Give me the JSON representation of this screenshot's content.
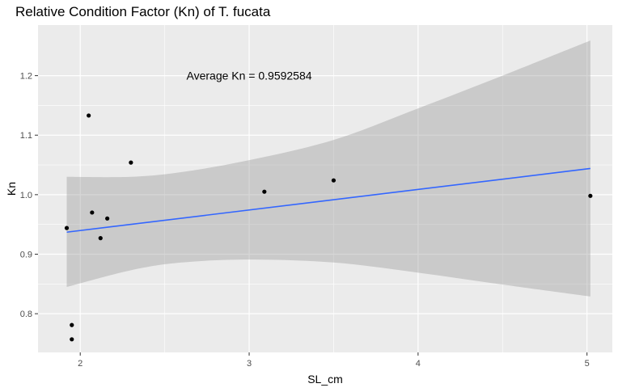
{
  "chart_data": {
    "type": "scatter",
    "title": "Relative Condition Factor (Kn) of T. fucata",
    "xlabel": "SL_cm",
    "ylabel": "Kn",
    "xlim": [
      1.75,
      5.15
    ],
    "ylim": [
      0.735,
      1.285
    ],
    "x_ticks": [
      2,
      3,
      4,
      5
    ],
    "x_tick_labels": [
      "2",
      "3",
      "4",
      "5"
    ],
    "y_ticks": [
      0.8,
      0.9,
      1.0,
      1.1,
      1.2
    ],
    "y_tick_labels": [
      "0.8",
      "0.9",
      "1.0",
      "1.1",
      "1.2"
    ],
    "grid": true,
    "background": "#ebebeb",
    "annotation": {
      "text": "Average Kn = 0.9592584",
      "x": 3.0,
      "y": 1.2
    },
    "points": [
      {
        "x": 1.92,
        "y": 0.944
      },
      {
        "x": 1.95,
        "y": 0.781
      },
      {
        "x": 1.95,
        "y": 0.757
      },
      {
        "x": 2.05,
        "y": 1.133
      },
      {
        "x": 2.07,
        "y": 0.97
      },
      {
        "x": 2.12,
        "y": 0.927
      },
      {
        "x": 2.16,
        "y": 0.96
      },
      {
        "x": 2.3,
        "y": 1.054
      },
      {
        "x": 3.09,
        "y": 1.005
      },
      {
        "x": 3.5,
        "y": 1.024
      },
      {
        "x": 5.02,
        "y": 0.998
      }
    ],
    "regression": {
      "color": "#3366ff",
      "line": [
        [
          1.92,
          0.937
        ],
        [
          5.02,
          1.044
        ]
      ],
      "ci_color": "#999999",
      "ci_upper": [
        [
          1.92,
          1.03
        ],
        [
          2.3,
          1.03
        ],
        [
          2.6,
          1.038
        ],
        [
          3.0,
          1.058
        ],
        [
          3.5,
          1.092
        ],
        [
          4.0,
          1.145
        ],
        [
          4.5,
          1.2
        ],
        [
          5.02,
          1.259
        ]
      ],
      "ci_lower": [
        [
          1.92,
          0.845
        ],
        [
          2.3,
          0.873
        ],
        [
          2.6,
          0.886
        ],
        [
          3.0,
          0.891
        ],
        [
          3.5,
          0.886
        ],
        [
          4.0,
          0.869
        ],
        [
          4.5,
          0.849
        ],
        [
          5.02,
          0.829
        ]
      ]
    }
  }
}
